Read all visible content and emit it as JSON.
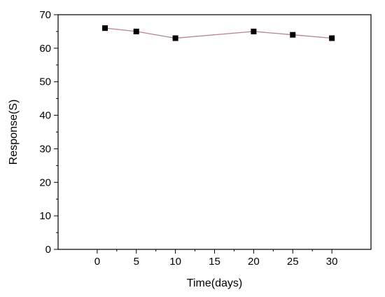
{
  "chart_data": {
    "type": "line",
    "title": "",
    "xlabel": "Time(days)",
    "ylabel": "Response(S)",
    "xlim": [
      -5,
      35
    ],
    "ylim": [
      0,
      70
    ],
    "x_ticks": [
      0,
      5,
      10,
      15,
      20,
      25,
      30
    ],
    "y_ticks": [
      0,
      10,
      20,
      30,
      40,
      50,
      60,
      70
    ],
    "grid": false,
    "legend": "none",
    "series": [
      {
        "x": [
          1,
          5,
          10,
          20,
          25,
          30
        ],
        "values": [
          66,
          65,
          63,
          65,
          64,
          63
        ],
        "line_color": "#b9848c",
        "marker": "square",
        "marker_color": "#000000"
      }
    ]
  }
}
